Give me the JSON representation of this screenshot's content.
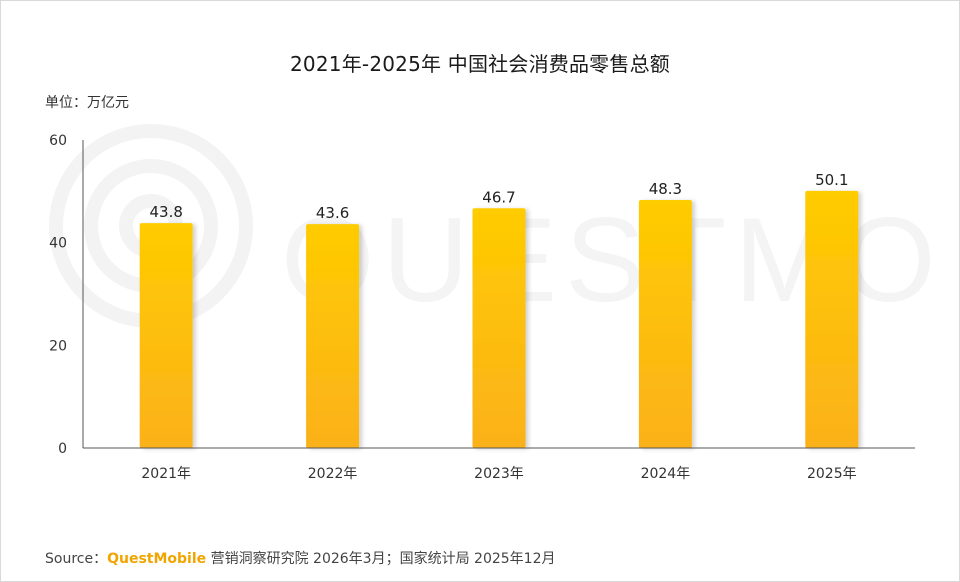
{
  "title": "2021年-2025年 中国社会消费品零售总额",
  "unit_label": "单位：万亿元",
  "watermark_text": "QUESTMOBILE",
  "source": {
    "prefix": "Source：",
    "brand": "QuestMobile",
    "suffix": " 营销洞察研究院 2026年3月；国家统计局 2025年12月"
  },
  "colors": {
    "bar_top": "#ffcc00",
    "bar_bottom": "#fbb11a",
    "axis": "#555555",
    "brand": "#f0a500"
  },
  "chart_data": {
    "type": "bar",
    "categories": [
      "2021年",
      "2022年",
      "2023年",
      "2024年",
      "2025年"
    ],
    "values": [
      43.8,
      43.6,
      46.7,
      48.3,
      50.1
    ],
    "value_labels": [
      "43.8",
      "43.6",
      "46.7",
      "48.3",
      "50.1"
    ],
    "yticks": [
      0,
      20,
      40,
      60
    ],
    "ylim": [
      0,
      60
    ],
    "grid": false,
    "legend": "none"
  }
}
